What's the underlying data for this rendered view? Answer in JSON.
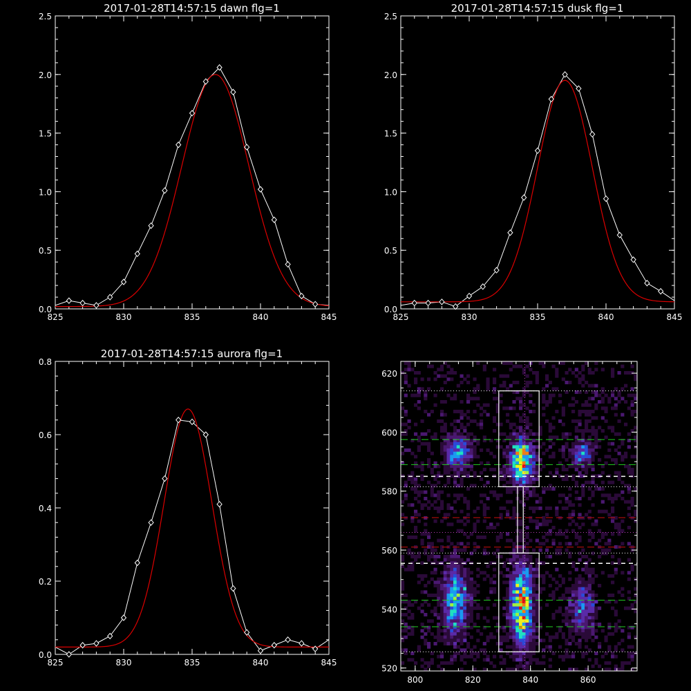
{
  "chart_data": [
    {
      "id": "dawn",
      "type": "line",
      "title": "2017-01-28T14:57:15 dawn flg=1",
      "xlim": [
        825,
        845
      ],
      "ylim": [
        0,
        2.5
      ],
      "xticks": [
        825,
        830,
        835,
        840,
        845
      ],
      "yticks": [
        0.0,
        0.5,
        1.0,
        1.5,
        2.0,
        2.5
      ],
      "ytick_labels": [
        "0.0",
        "0.5",
        "1.0",
        "1.5",
        "2.0",
        "2.5"
      ],
      "colors": {
        "data": "#ffffff",
        "fit": "#dd0000"
      },
      "series": [
        {
          "kind": "data",
          "x": [
            825,
            826,
            827,
            828,
            829,
            830,
            831,
            832,
            833,
            834,
            835,
            836,
            837,
            838,
            839,
            840,
            841,
            842,
            843,
            844,
            845
          ],
          "y": [
            0.03,
            0.07,
            0.05,
            0.03,
            0.1,
            0.23,
            0.47,
            0.71,
            1.01,
            1.4,
            1.67,
            1.94,
            2.06,
            1.85,
            1.38,
            1.02,
            0.76,
            0.38,
            0.11,
            0.04,
            0.03
          ]
        },
        {
          "kind": "fit",
          "model": "gaussian",
          "amplitude": 1.98,
          "center": 836.7,
          "sigma": 2.45,
          "baseline": 0.02
        }
      ]
    },
    {
      "id": "dusk",
      "type": "line",
      "title": "2017-01-28T14:57:15 dusk flg=1",
      "xlim": [
        825,
        845
      ],
      "ylim": [
        0,
        2.5
      ],
      "xticks": [
        825,
        830,
        835,
        840,
        845
      ],
      "yticks": [
        0.0,
        0.5,
        1.0,
        1.5,
        2.0,
        2.5
      ],
      "ytick_labels": [
        "0.0",
        "0.5",
        "1.0",
        "1.5",
        "2.0",
        "2.5"
      ],
      "colors": {
        "data": "#ffffff",
        "fit": "#dd0000"
      },
      "series": [
        {
          "kind": "data",
          "x": [
            825,
            826,
            827,
            828,
            829,
            830,
            831,
            832,
            833,
            834,
            835,
            836,
            837,
            838,
            839,
            840,
            841,
            842,
            843,
            844,
            845
          ],
          "y": [
            0.03,
            0.05,
            0.05,
            0.06,
            0.02,
            0.11,
            0.19,
            0.33,
            0.65,
            0.95,
            1.35,
            1.79,
            2.0,
            1.88,
            1.49,
            0.94,
            0.63,
            0.42,
            0.22,
            0.15,
            0.07
          ]
        },
        {
          "kind": "fit",
          "model": "gaussian",
          "amplitude": 1.89,
          "center": 837.0,
          "sigma": 2.0,
          "baseline": 0.06
        }
      ]
    },
    {
      "id": "aurora",
      "type": "line",
      "title": "2017-01-28T14:57:15 aurora flg=1",
      "xlim": [
        825,
        845
      ],
      "ylim": [
        0,
        0.8
      ],
      "xticks": [
        825,
        830,
        835,
        840,
        845
      ],
      "yticks": [
        0.0,
        0.2,
        0.4,
        0.6,
        0.8
      ],
      "ytick_labels": [
        "0.0",
        "0.2",
        "0.4",
        "0.6",
        "0.8"
      ],
      "colors": {
        "data": "#ffffff",
        "fit": "#dd0000"
      },
      "series": [
        {
          "kind": "data",
          "x": [
            825,
            826,
            827,
            828,
            829,
            830,
            831,
            832,
            833,
            834,
            835,
            836,
            837,
            838,
            839,
            840,
            841,
            842,
            843,
            844,
            845
          ],
          "y": [
            0.02,
            0.0,
            0.025,
            0.03,
            0.05,
            0.1,
            0.25,
            0.36,
            0.48,
            0.64,
            0.635,
            0.6,
            0.41,
            0.18,
            0.06,
            0.01,
            0.025,
            0.04,
            0.03,
            0.015,
            0.04
          ]
        },
        {
          "kind": "fit",
          "model": "gaussian",
          "amplitude": 0.65,
          "center": 834.7,
          "sigma": 1.75,
          "baseline": 0.02
        }
      ]
    },
    {
      "id": "image",
      "type": "heatmap",
      "title": "",
      "xlim": [
        795,
        877
      ],
      "ylim": [
        519,
        624
      ],
      "xticks": [
        800,
        820,
        840,
        860
      ],
      "yticks": [
        520,
        540,
        560,
        580,
        600,
        620
      ],
      "colors": {
        "colormap": [
          "#000000",
          "#2a0a38",
          "#4a1870",
          "#5a2aa8",
          "#2a4ad8",
          "#1a9af0",
          "#20e0c0",
          "#a0f040",
          "#f0f020",
          "#f08010",
          "#e01010"
        ],
        "box": "#ffffff",
        "dotted_white": "#ffffff",
        "dotted_magenta": "#c040c0",
        "green": "#20d020",
        "red": "#d01010",
        "white_dash": "#ffffff"
      },
      "blobs": [
        {
          "x": 815,
          "y": 593,
          "sx": 3,
          "sy": 4,
          "amp": 0.55
        },
        {
          "x": 837,
          "y": 590,
          "sx": 2.5,
          "sy": 5,
          "amp": 1.0
        },
        {
          "x": 858,
          "y": 593,
          "sx": 2.5,
          "sy": 3,
          "amp": 0.45
        },
        {
          "x": 814,
          "y": 543,
          "sx": 3,
          "sy": 8,
          "amp": 0.6
        },
        {
          "x": 837,
          "y": 541,
          "sx": 2.5,
          "sy": 9,
          "amp": 0.95
        },
        {
          "x": 858,
          "y": 540,
          "sx": 3,
          "sy": 6,
          "amp": 0.4
        }
      ],
      "boxes": [
        {
          "x0": 829,
          "x1": 843,
          "y0": 581.5,
          "y1": 614
        },
        {
          "x0": 829,
          "x1": 843,
          "y0": 525.5,
          "y1": 559
        },
        {
          "x0": 835.5,
          "x1": 837.5,
          "y0": 559,
          "y1": 581.5
        }
      ],
      "vline_x": 838,
      "hlines": [
        {
          "y": 614,
          "style": "dotted_white"
        },
        {
          "y": 581.5,
          "style": "dotted_white"
        },
        {
          "y": 559,
          "style": "dotted_white"
        },
        {
          "y": 525.5,
          "style": "dotted_white"
        },
        {
          "y": 566,
          "style": "dotted_magenta"
        },
        {
          "y": 597.5,
          "style": "green"
        },
        {
          "y": 589,
          "style": "green"
        },
        {
          "y": 543,
          "style": "green"
        },
        {
          "y": 534,
          "style": "green"
        },
        {
          "y": 585,
          "style": "white_dash"
        },
        {
          "y": 555.5,
          "style": "white_dash"
        },
        {
          "y": 571,
          "style": "red"
        },
        {
          "y": 561,
          "style": "red"
        }
      ]
    }
  ]
}
